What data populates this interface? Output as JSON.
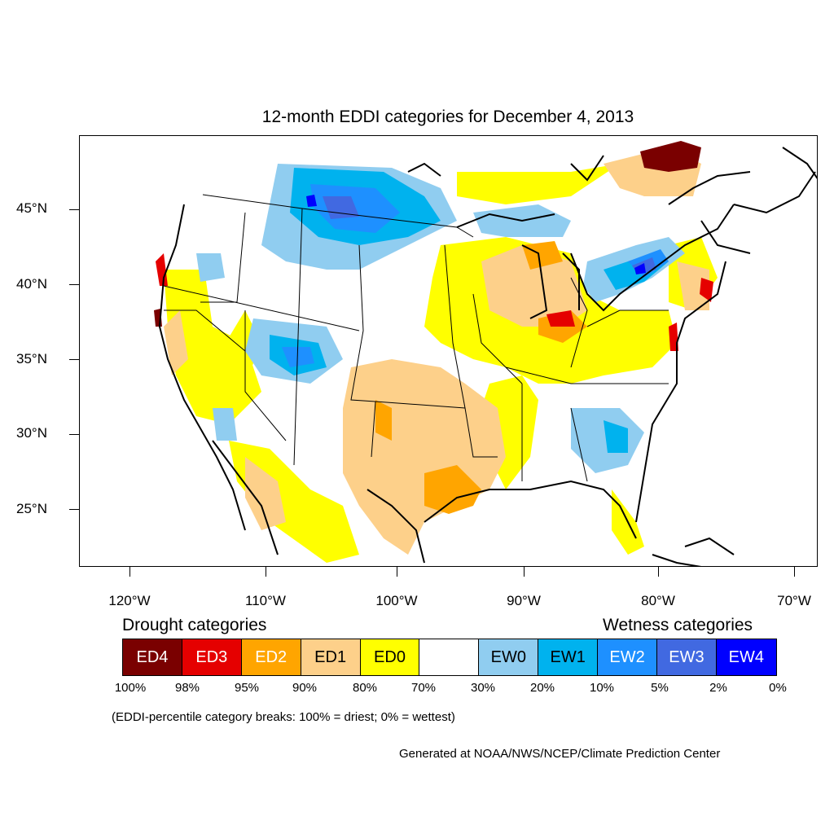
{
  "title": "12-month EDDI categories for December 4, 2013",
  "lat_labels": [
    "45°N",
    "40°N",
    "35°N",
    "30°N",
    "25°N"
  ],
  "lon_labels": [
    "120°W",
    "110°W",
    "100°W",
    "90°W",
    "80°W",
    "70°W"
  ],
  "legend": {
    "drought_heading": "Drought categories",
    "wetness_heading": "Wetness categories",
    "categories": [
      {
        "label": "ED4",
        "color": "#7a0000",
        "text_color": "#ffffff"
      },
      {
        "label": "ED3",
        "color": "#e50000",
        "text_color": "#ffffff"
      },
      {
        "label": "ED2",
        "color": "#ffa500",
        "text_color": "#ffffff"
      },
      {
        "label": "ED1",
        "color": "#fdd08a",
        "text_color": "#000000"
      },
      {
        "label": "ED0",
        "color": "#ffff00",
        "text_color": "#000000"
      },
      {
        "label": "",
        "color": "#ffffff",
        "text_color": "#000000"
      },
      {
        "label": "EW0",
        "color": "#90cdf0",
        "text_color": "#000000"
      },
      {
        "label": "EW1",
        "color": "#00b2ee",
        "text_color": "#000000"
      },
      {
        "label": "EW2",
        "color": "#1e90ff",
        "text_color": "#ffffff"
      },
      {
        "label": "EW3",
        "color": "#4169e1",
        "text_color": "#ffffff"
      },
      {
        "label": "EW4",
        "color": "#0000ff",
        "text_color": "#ffffff"
      }
    ],
    "breaks": [
      "100%",
      "98%",
      "95%",
      "90%",
      "80%",
      "70%",
      "30%",
      "20%",
      "10%",
      "5%",
      "2%",
      "0%"
    ]
  },
  "note": "(EDDI-percentile category breaks: 100% = driest; 0% = wettest)",
  "credit": "Generated at NOAA/NWS/NCEP/Climate Prediction Center"
}
